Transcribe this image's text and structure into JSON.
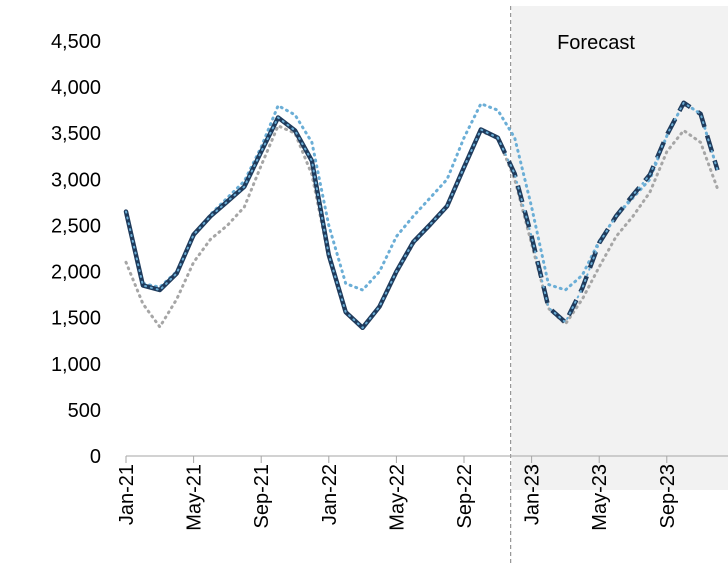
{
  "chart_data": {
    "type": "line",
    "title": "",
    "xlabel": "",
    "ylabel": "",
    "ylim": [
      0,
      4500
    ],
    "y_ticks": [
      0,
      500,
      1000,
      1500,
      2000,
      2500,
      3000,
      3500,
      4000,
      4500
    ],
    "y_tick_labels": [
      "0",
      "500",
      "1,000",
      "1,500",
      "2,000",
      "2,500",
      "3,000",
      "3,500",
      "4,000",
      "4,500"
    ],
    "x_tick_labels": [
      "Jan-21",
      "May-21",
      "Sep-21",
      "Jan-22",
      "May-22",
      "Sep-22",
      "Jan-23",
      "May-23",
      "Sep-23"
    ],
    "x": [
      "Jan-21",
      "Feb-21",
      "Mar-21",
      "Apr-21",
      "May-21",
      "Jun-21",
      "Jul-21",
      "Aug-21",
      "Sep-21",
      "Oct-21",
      "Nov-21",
      "Dec-21",
      "Jan-22",
      "Feb-22",
      "Mar-22",
      "Apr-22",
      "May-22",
      "Jun-22",
      "Jul-22",
      "Aug-22",
      "Sep-22",
      "Oct-22",
      "Nov-22",
      "Dec-22",
      "Jan-23",
      "Feb-23",
      "Mar-23",
      "Apr-23",
      "May-23",
      "Jun-23",
      "Jul-23",
      "Aug-23",
      "Sep-23",
      "Oct-23",
      "Nov-23",
      "Dec-23"
    ],
    "forecast_start": "Dec-22",
    "forecast_label": "Forecast",
    "grid": false,
    "series": [
      {
        "style": "solid-then-dashed",
        "color": "#1f3b5c",
        "values": [
          2650,
          1850,
          1800,
          1980,
          2400,
          2600,
          2760,
          2920,
          3300,
          3670,
          3530,
          3200,
          2180,
          1560,
          1390,
          1620,
          2000,
          2320,
          2510,
          2710,
          3130,
          3540,
          3450,
          3060,
          2380,
          1610,
          1450,
          1820,
          2310,
          2600,
          2830,
          3050,
          3480,
          3830,
          3710,
          3100
        ]
      },
      {
        "style": "dotted",
        "color": "#6baed6",
        "values": [
          2620,
          1870,
          1830,
          2000,
          2380,
          2620,
          2800,
          2980,
          3350,
          3800,
          3700,
          3400,
          2500,
          1870,
          1800,
          2000,
          2380,
          2600,
          2800,
          3000,
          3450,
          3820,
          3750,
          3450,
          2700,
          1860,
          1800,
          1960,
          2330,
          2600,
          2800,
          3000,
          3470,
          3830,
          3710,
          3100
        ]
      },
      {
        "style": "dotted",
        "color": "#a6a6a6",
        "values": [
          2100,
          1650,
          1400,
          1700,
          2100,
          2350,
          2500,
          2700,
          3150,
          3580,
          3500,
          3050,
          2150,
          1560,
          1390,
          1620,
          1980,
          2300,
          2510,
          2710,
          3130,
          3520,
          3450,
          3000,
          2300,
          1600,
          1430,
          1700,
          2050,
          2380,
          2600,
          2860,
          3300,
          3530,
          3400,
          2900
        ]
      }
    ],
    "colors": {
      "forecast_shading": "#f2f2f2",
      "divider": "#7f7f7f",
      "axis": "#a6a6a6"
    }
  }
}
